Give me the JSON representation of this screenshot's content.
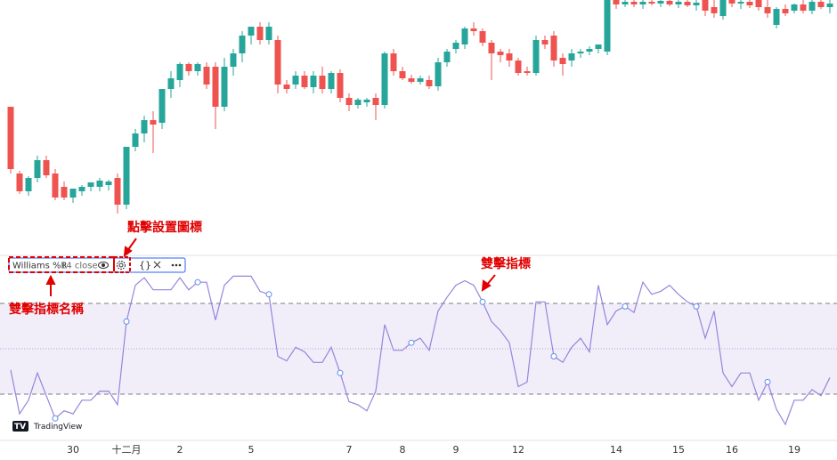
{
  "chart_data": [
    {
      "type": "candlestick",
      "ylim": [
        0,
        270
      ],
      "up_color": "#26a69a",
      "down_color": "#ef5350",
      "categories": [
        null,
        null,
        null,
        null,
        null,
        null,
        null,
        "30",
        null,
        null,
        null,
        null,
        null,
        "十二月",
        null,
        null,
        null,
        null,
        null,
        "2",
        null,
        null,
        null,
        null,
        null,
        null,
        null,
        "5",
        null,
        null,
        null,
        null,
        null,
        null,
        null,
        null,
        null,
        null,
        "7",
        null,
        null,
        null,
        null,
        null,
        "8",
        null,
        null,
        null,
        null,
        null,
        "9",
        null,
        null,
        null,
        null,
        null,
        null,
        "12",
        null,
        null,
        null,
        null,
        null,
        null,
        null,
        null,
        null,
        null,
        "14",
        null,
        null,
        null,
        null,
        null,
        null,
        "15",
        null,
        null,
        null,
        null,
        null,
        "16",
        null,
        null,
        null,
        null,
        null,
        null,
        "19",
        null,
        null,
        null,
        null
      ],
      "ohlc": [
        [
          150,
          150,
          75,
          80
        ],
        [
          75,
          78,
          52,
          55
        ],
        [
          55,
          72,
          50,
          70
        ],
        [
          70,
          95,
          65,
          90
        ],
        [
          90,
          95,
          70,
          73
        ],
        [
          75,
          80,
          45,
          48
        ],
        [
          60,
          66,
          45,
          48
        ],
        [
          48,
          58,
          42,
          58
        ],
        [
          55,
          62,
          50,
          60
        ],
        [
          60,
          65,
          55,
          65
        ],
        [
          60,
          70,
          55,
          67
        ],
        [
          62,
          68,
          56,
          66
        ],
        [
          70,
          75,
          30,
          40
        ],
        [
          40,
          105,
          35,
          105
        ],
        [
          105,
          125,
          100,
          120
        ],
        [
          120,
          140,
          110,
          135
        ],
        [
          135,
          145,
          98,
          130
        ],
        [
          132,
          170,
          125,
          170
        ],
        [
          170,
          190,
          160,
          182
        ],
        [
          180,
          200,
          172,
          198
        ],
        [
          198,
          200,
          185,
          190
        ],
        [
          190,
          200,
          185,
          198
        ],
        [
          195,
          200,
          170,
          175
        ],
        [
          195,
          200,
          125,
          150
        ],
        [
          150,
          205,
          145,
          195
        ],
        [
          195,
          215,
          185,
          210
        ],
        [
          210,
          235,
          200,
          230
        ],
        [
          230,
          240,
          220,
          240
        ],
        [
          240,
          245,
          220,
          225
        ],
        [
          225,
          245,
          220,
          240
        ],
        [
          225,
          230,
          165,
          175
        ],
        [
          175,
          180,
          165,
          170
        ],
        [
          175,
          190,
          170,
          185
        ],
        [
          185,
          190,
          170,
          172
        ],
        [
          172,
          190,
          165,
          185
        ],
        [
          185,
          195,
          165,
          170
        ],
        [
          170,
          190,
          165,
          188
        ],
        [
          188,
          192,
          155,
          160
        ],
        [
          160,
          165,
          145,
          152
        ],
        [
          152,
          160,
          148,
          158
        ],
        [
          155,
          160,
          150,
          158
        ],
        [
          160,
          165,
          135,
          152
        ],
        [
          152,
          212,
          148,
          210
        ],
        [
          210,
          215,
          185,
          190
        ],
        [
          190,
          195,
          180,
          182
        ],
        [
          182,
          186,
          176,
          178
        ],
        [
          178,
          185,
          175,
          182
        ],
        [
          180,
          185,
          170,
          173
        ],
        [
          173,
          205,
          168,
          200
        ],
        [
          200,
          215,
          195,
          212
        ],
        [
          215,
          225,
          210,
          222
        ],
        [
          220,
          240,
          215,
          238
        ],
        [
          238,
          245,
          230,
          235
        ],
        [
          235,
          238,
          218,
          222
        ],
        [
          222,
          225,
          180,
          210
        ],
        [
          212,
          215,
          200,
          208
        ],
        [
          210,
          215,
          195,
          202
        ],
        [
          202,
          205,
          185,
          188
        ],
        [
          190,
          195,
          185,
          188
        ],
        [
          188,
          230,
          185,
          225
        ],
        [
          225,
          230,
          215,
          220
        ],
        [
          230,
          235,
          195,
          202
        ],
        [
          205,
          210,
          185,
          198
        ],
        [
          202,
          215,
          195,
          210
        ],
        [
          210,
          215,
          205,
          212
        ],
        [
          212,
          218,
          208,
          215
        ],
        [
          215,
          220,
          210,
          220
        ],
        [
          212,
          270,
          208,
          270
        ],
        [
          270,
          270,
          260,
          265
        ],
        [
          265,
          270,
          262,
          268
        ],
        [
          268,
          270,
          262,
          265
        ],
        [
          265,
          270,
          260,
          268
        ],
        [
          268,
          270,
          264,
          266
        ],
        [
          266,
          270,
          262,
          269
        ],
        [
          269,
          270,
          263,
          265
        ],
        [
          265,
          270,
          261,
          268
        ],
        [
          268,
          270,
          262,
          264
        ],
        [
          264,
          270,
          258,
          267
        ],
        [
          270,
          270,
          252,
          258
        ],
        [
          262,
          270,
          250,
          255
        ],
        [
          252,
          270,
          248,
          270
        ],
        [
          270,
          270,
          262,
          266
        ],
        [
          266,
          270,
          260,
          268
        ],
        [
          268,
          270,
          261,
          264
        ],
        [
          270,
          270,
          258,
          262
        ],
        [
          262,
          270,
          250,
          255
        ],
        [
          242,
          262,
          238,
          260
        ],
        [
          260,
          265,
          252,
          255
        ],
        [
          258,
          266,
          255,
          265
        ],
        [
          265,
          270,
          255,
          258
        ],
        [
          258,
          270,
          254,
          268
        ],
        [
          268,
          270,
          260,
          262
        ],
        [
          262,
          270,
          255,
          266
        ]
      ]
    },
    {
      "type": "line",
      "name": "Williams %R",
      "params": "14 close",
      "color": "#9585dc",
      "ylim": [
        -100,
        0
      ],
      "levels": [
        -20,
        -50,
        -80
      ],
      "values": [
        -64,
        -93,
        -84,
        -66,
        -81,
        -96,
        -91,
        -93,
        -84,
        -84,
        -78,
        -78,
        -87,
        -32,
        -8,
        -3,
        -11,
        -11,
        -11,
        -3,
        -11,
        -6,
        -6,
        -31,
        -8,
        -2,
        -2,
        -2,
        -12,
        -14,
        -55,
        -58,
        -49,
        -52,
        -59,
        -59,
        -49,
        -66,
        -85,
        -87,
        -91,
        -78,
        -34,
        -51,
        -51,
        -46,
        -43,
        -51,
        -25,
        -16,
        -8,
        -5,
        -8,
        -19,
        -32,
        -38,
        -46,
        -75,
        -72,
        -19,
        -19,
        -55,
        -59,
        -49,
        -43,
        -52,
        -8,
        -34,
        -25,
        -22,
        -26,
        -6,
        -14,
        -12,
        -8,
        -14,
        -19,
        -22,
        -43,
        -25,
        -66,
        -75,
        -66,
        -66,
        -84,
        -72,
        -90,
        -100,
        -84,
        -84,
        -77,
        -81,
        -69
      ]
    }
  ],
  "annotations": {
    "settings": "點擊設置圖標",
    "indicator": "雙擊指標",
    "name": "雙擊指標名稱"
  },
  "watermark": "TradingView"
}
